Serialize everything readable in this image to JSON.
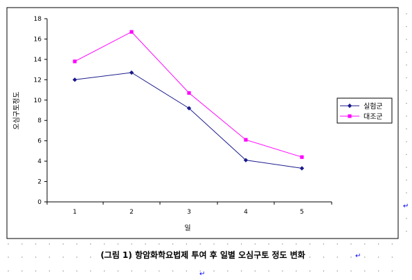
{
  "chart_data": {
    "type": "line",
    "categories": [
      "1",
      "2",
      "3",
      "4",
      "5"
    ],
    "series": [
      {
        "name": "실험군",
        "values": [
          12.0,
          12.7,
          9.2,
          4.1,
          3.3
        ],
        "color": "#1a1a8c",
        "marker": "diamond"
      },
      {
        "name": "대조군",
        "values": [
          13.8,
          16.7,
          10.7,
          6.1,
          4.4
        ],
        "color": "#ff00ff",
        "marker": "square"
      }
    ],
    "title": "",
    "xlabel": "일",
    "ylabel": "오심구토정도",
    "ylim": [
      0,
      18
    ],
    "yticks": [
      0,
      2,
      4,
      6,
      8,
      10,
      12,
      14,
      16,
      18
    ],
    "grid": false,
    "legend_position": "right"
  },
  "caption": "(그림 1) 항암화학요법제 투여 후 일별 오심구토 정도 변화",
  "paragraph_mark": "↵"
}
